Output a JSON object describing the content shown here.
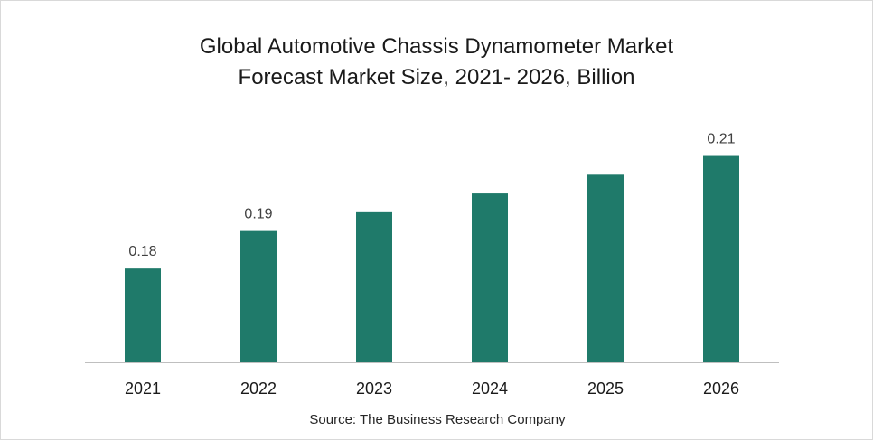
{
  "chart_data": {
    "type": "bar",
    "title_lines": [
      "Global Automotive Chassis Dynamometer Market",
      "Forecast Market Size, 2021- 2026, Billion"
    ],
    "categories": [
      "2021",
      "2022",
      "2023",
      "2024",
      "2025",
      "2026"
    ],
    "values": [
      0.18,
      0.19,
      0.195,
      0.2,
      0.205,
      0.21
    ],
    "data_labels": [
      "0.18",
      "0.19",
      "",
      "",
      "",
      "0.21"
    ],
    "xlabel": "",
    "ylabel": "",
    "ylim": [
      0.155,
      0.22
    ],
    "grid": false,
    "legend": "none",
    "bar_color": "#1f7a6a",
    "axis_color": "#bfbfbf"
  },
  "source": "Source: The Business Research Company"
}
